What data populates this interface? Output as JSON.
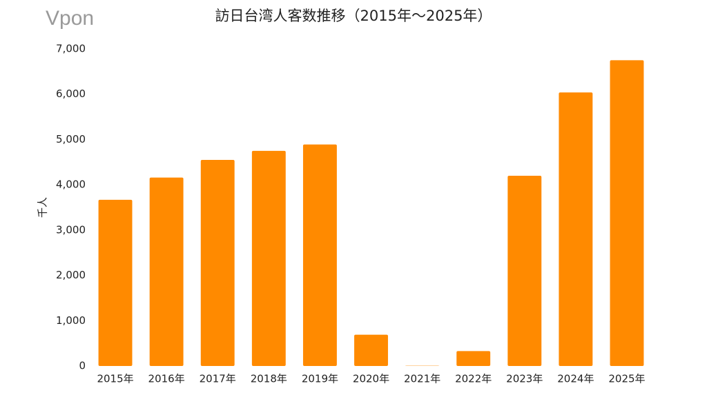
{
  "logo": "Vpon",
  "chart_data": {
    "type": "bar",
    "title": "訪日台湾人客数推移（2015年～2025年）",
    "y_label": "千人",
    "categories": [
      "2015年",
      "2016年",
      "2017年",
      "2018年",
      "2019年",
      "2020年",
      "2021年",
      "2022年",
      "2023年",
      "2024年",
      "2025年"
    ],
    "values": [
      3670,
      4160,
      4550,
      4750,
      4890,
      690,
      5,
      330,
      4200,
      6040,
      6750
    ],
    "color": "#ff8a00",
    "ylim": [
      0,
      7000
    ],
    "yticks": [
      0,
      {
        "value": 1000,
        "label": "1,000"
      },
      {
        "value": 2000,
        "label": "2,000"
      },
      {
        "value": 3000,
        "label": "3,000"
      },
      {
        "value": 4000,
        "label": "4,000"
      },
      {
        "value": 5000,
        "label": "5,000"
      },
      {
        "value": 6000,
        "label": "6,000"
      },
      {
        "value": 7000,
        "label": "7,000"
      }
    ],
    "grid": true
  }
}
